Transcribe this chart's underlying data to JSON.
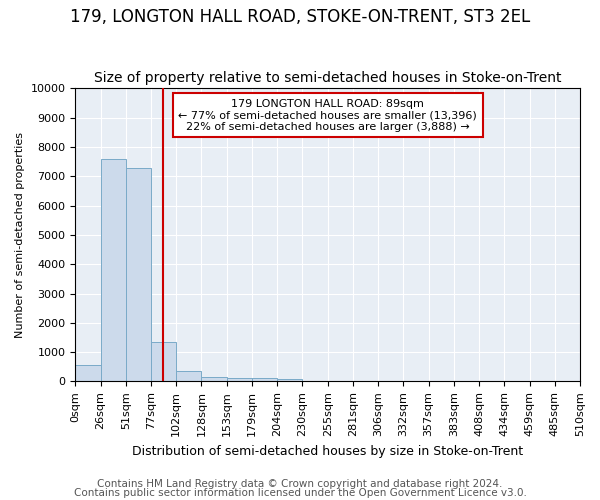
{
  "title": "179, LONGTON HALL ROAD, STOKE-ON-TRENT, ST3 2EL",
  "subtitle": "Size of property relative to semi-detached houses in Stoke-on-Trent",
  "xlabel": "Distribution of semi-detached houses by size in Stoke-on-Trent",
  "ylabel": "Number of semi-detached properties",
  "footer_line1": "Contains HM Land Registry data © Crown copyright and database right 2024.",
  "footer_line2": "Contains public sector information licensed under the Open Government Licence v3.0.",
  "bin_edges": [
    0,
    25.5,
    51,
    76.5,
    102,
    127.5,
    153,
    178.5,
    204,
    229.5,
    255,
    280.5,
    306,
    331.5,
    357,
    382.5,
    408,
    433.5,
    459,
    484.5,
    510
  ],
  "bar_heights": [
    570,
    7600,
    7280,
    1340,
    360,
    155,
    130,
    115,
    70,
    0,
    0,
    0,
    0,
    0,
    0,
    0,
    0,
    0,
    0,
    0
  ],
  "bar_color": "#ccdaeb",
  "bar_edge_color": "#7aaac8",
  "property_size": 89,
  "red_line_color": "#cc0000",
  "ann_line1": "179 LONGTON HALL ROAD: 89sqm",
  "ann_line2": "← 77% of semi-detached houses are smaller (13,396)",
  "ann_line3": "22% of semi-detached houses are larger (3,888) →",
  "ylim": [
    0,
    10000
  ],
  "xlim": [
    0,
    510
  ],
  "tick_labels": [
    "0sqm",
    "26sqm",
    "51sqm",
    "77sqm",
    "102sqm",
    "128sqm",
    "153sqm",
    "179sqm",
    "204sqm",
    "230sqm",
    "255sqm",
    "281sqm",
    "306sqm",
    "332sqm",
    "357sqm",
    "383sqm",
    "408sqm",
    "434sqm",
    "459sqm",
    "485sqm",
    "510sqm"
  ],
  "plot_bg_color": "#e8eef5",
  "fig_bg_color": "#ffffff",
  "grid_color": "#ffffff",
  "title_fontsize": 12,
  "subtitle_fontsize": 10,
  "axis_fontsize": 8,
  "footer_fontsize": 7.5,
  "ylabel_fontsize": 8,
  "xlabel_fontsize": 9
}
